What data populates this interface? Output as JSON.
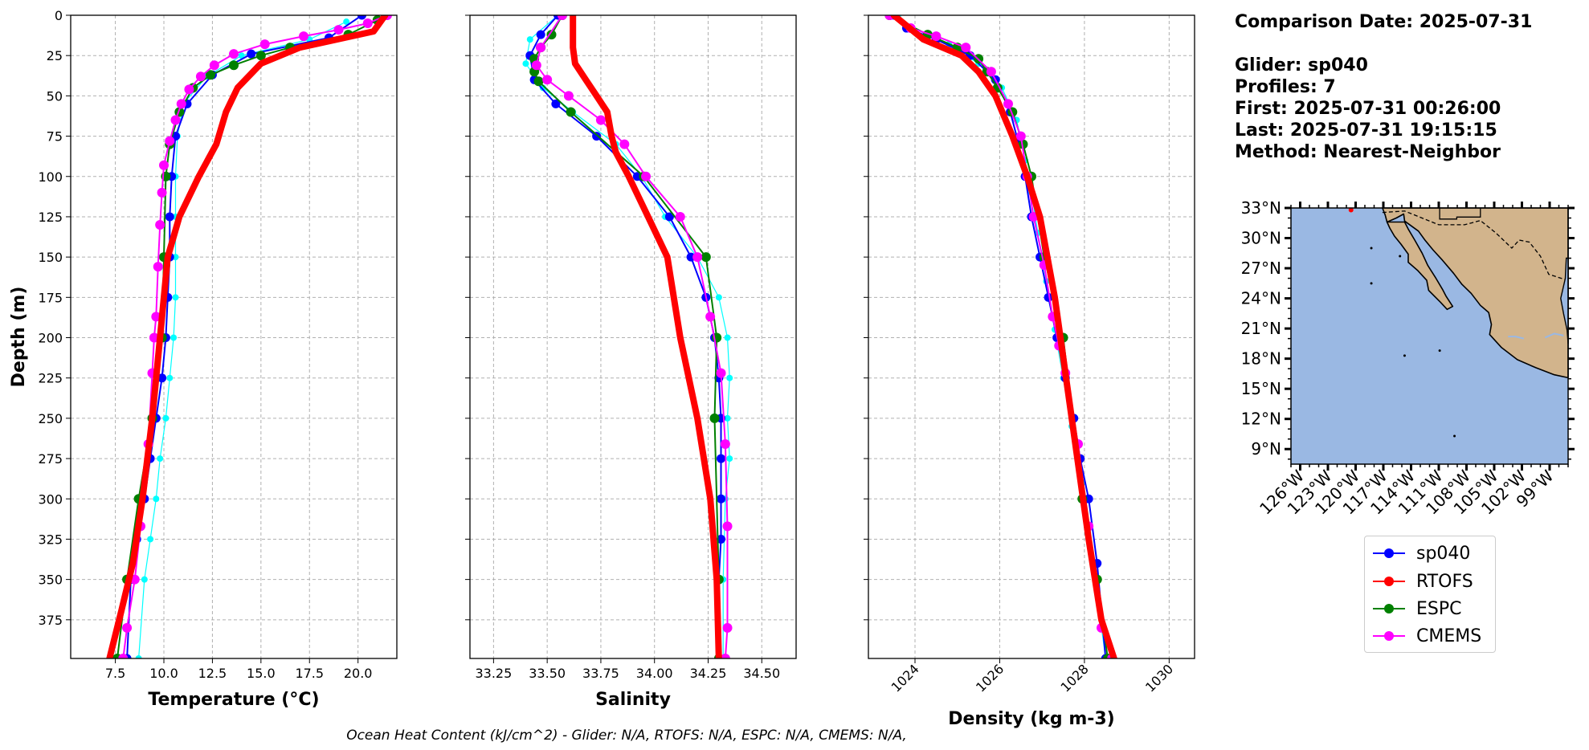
{
  "info": {
    "comparison": "Comparison Date: 2025-07-31",
    "glider": "Glider: sp040",
    "profiles": "Profiles: 7",
    "first": "First: 2025-07-31 00:26:00",
    "last": "Last: 2025-07-31 19:15:15",
    "method": "Method: Nearest-Neighbor"
  },
  "footnote": "Ocean Heat Content (kJ/cm^2) - Glider: N/A,  RTOFS: N/A,  ESPC: N/A,  CMEMS: N/A,",
  "legend": [
    {
      "name": "sp040",
      "color": "#0000ff"
    },
    {
      "name": "RTOFS",
      "color": "#ff0000"
    },
    {
      "name": "ESPC",
      "color": "#008000"
    },
    {
      "name": "CMEMS",
      "color": "#ff00ff"
    }
  ],
  "chart_data": [
    {
      "type": "line",
      "xlabel": "Temperature (°C)",
      "ylabel": "Depth (m)",
      "xlim": [
        5.2,
        22
      ],
      "ylim": [
        399,
        0
      ],
      "xticks": [
        "7.5",
        "10.0",
        "12.5",
        "15.0",
        "17.5",
        "20.0"
      ],
      "xtick_values": [
        7.5,
        10.0,
        12.5,
        15.0,
        17.5,
        20.0
      ],
      "yticks": [
        "0",
        "25",
        "50",
        "75",
        "100",
        "125",
        "150",
        "175",
        "200",
        "225",
        "250",
        "275",
        "300",
        "325",
        "350",
        "375"
      ],
      "ytick_values": [
        0,
        25,
        50,
        75,
        100,
        125,
        150,
        175,
        200,
        225,
        250,
        275,
        300,
        325,
        350,
        375
      ],
      "grid": true,
      "series": [
        {
          "name": "sp040",
          "color": "#0000ff",
          "x": [
            20.2,
            18.5,
            14.5,
            12.5,
            11.2,
            10.6,
            10.4,
            10.3,
            10.3,
            10.2,
            10.1,
            9.9,
            9.6,
            9.3,
            9.0,
            8.6,
            8.3,
            8.1
          ],
          "y": [
            0,
            14,
            24,
            37,
            55,
            75,
            100,
            125,
            150,
            175,
            200,
            225,
            250,
            275,
            300,
            325,
            350,
            399
          ]
        },
        {
          "name": "RTOFS",
          "color": "#ff0000",
          "x": [
            21.4,
            20.8,
            17.0,
            15.0,
            13.8,
            13.2,
            12.7,
            11.8,
            10.8,
            10.2,
            9.8,
            9.4,
            8.9,
            8.4,
            7.8,
            7.2
          ],
          "y": [
            0,
            10,
            20,
            30,
            45,
            60,
            80,
            100,
            125,
            150,
            200,
            250,
            300,
            340,
            370,
            399
          ]
        },
        {
          "name": "ESPC",
          "color": "#008000",
          "x": [
            21.0,
            19.5,
            16.5,
            15.0,
            13.6,
            12.4,
            11.5,
            10.8,
            10.3,
            10.1,
            10.0,
            9.9,
            9.4,
            8.7,
            8.1,
            7.6
          ],
          "y": [
            3,
            12,
            20,
            25,
            31,
            37,
            45,
            60,
            80,
            100,
            150,
            200,
            250,
            300,
            350,
            399
          ]
        },
        {
          "name": "CMEMS",
          "color": "#ff00ff",
          "x": [
            21.5,
            20.5,
            19.0,
            17.2,
            15.2,
            13.6,
            12.6,
            11.9,
            11.3,
            10.9,
            10.6,
            10.3,
            10.0,
            9.9,
            9.8,
            9.7,
            9.6,
            9.5,
            9.4,
            9.2,
            8.8,
            8.5,
            8.1,
            7.9
          ],
          "y": [
            0,
            5,
            9,
            13,
            18,
            24,
            31,
            38,
            46,
            55,
            65,
            78,
            93,
            110,
            130,
            156,
            187,
            200,
            222,
            266,
            317,
            350,
            380,
            399
          ]
        },
        {
          "name": "sp040 profiles",
          "color": "#00ffff",
          "x": [
            19.4,
            17.5,
            14.0,
            12.2,
            11.0,
            10.7,
            10.6,
            10.6,
            10.6,
            10.6,
            10.5,
            10.3,
            10.1,
            9.8,
            9.6,
            9.3,
            9.0,
            8.7
          ],
          "y": [
            4,
            15,
            25,
            38,
            55,
            75,
            100,
            125,
            150,
            175,
            200,
            225,
            250,
            275,
            300,
            325,
            350,
            399
          ]
        }
      ]
    },
    {
      "type": "line",
      "xlabel": "Salinity",
      "xlim": [
        33.14,
        34.66
      ],
      "ylim": [
        399,
        0
      ],
      "xticks": [
        "33.25",
        "33.50",
        "33.75",
        "34.00",
        "34.25",
        "34.50"
      ],
      "xtick_values": [
        33.25,
        33.5,
        33.75,
        34.0,
        34.25,
        34.5
      ],
      "grid": true,
      "series": [
        {
          "name": "sp040",
          "color": "#0000ff",
          "x": [
            33.55,
            33.47,
            33.42,
            33.44,
            33.54,
            33.73,
            33.92,
            34.07,
            34.17,
            34.24,
            34.28,
            34.3,
            34.31,
            34.31,
            34.31,
            34.31,
            34.3,
            34.3
          ],
          "y": [
            0,
            12,
            25,
            40,
            55,
            75,
            100,
            125,
            150,
            175,
            200,
            225,
            250,
            275,
            300,
            325,
            350,
            399
          ]
        },
        {
          "name": "RTOFS",
          "color": "#ff0000",
          "x": [
            33.62,
            33.62,
            33.63,
            33.68,
            33.73,
            33.78,
            33.8,
            33.82,
            33.88,
            33.97,
            34.06,
            34.12,
            34.2,
            34.26,
            34.29,
            34.3
          ],
          "y": [
            0,
            20,
            30,
            40,
            50,
            60,
            75,
            85,
            100,
            125,
            150,
            200,
            250,
            300,
            350,
            399
          ]
        },
        {
          "name": "ESPC",
          "color": "#008000",
          "x": [
            33.57,
            33.52,
            33.47,
            33.44,
            33.44,
            33.46,
            33.61,
            33.95,
            34.24,
            34.29,
            34.28,
            34.3,
            34.3
          ],
          "y": [
            0,
            12,
            20,
            27,
            35,
            41,
            60,
            100,
            150,
            200,
            250,
            350,
            399
          ]
        },
        {
          "name": "CMEMS",
          "color": "#ff00ff",
          "x": [
            33.57,
            33.47,
            33.45,
            33.5,
            33.6,
            33.75,
            33.86,
            33.96,
            34.12,
            34.2,
            34.26,
            34.31,
            34.33,
            34.34,
            34.34,
            34.33
          ],
          "y": [
            0,
            20,
            31,
            40,
            50,
            65,
            80,
            100,
            125,
            150,
            187,
            222,
            266,
            317,
            380,
            399
          ]
        },
        {
          "name": "sp040 profiles",
          "color": "#00ffff",
          "x": [
            33.55,
            33.42,
            33.4,
            33.48,
            33.62,
            33.82,
            33.94,
            34.05,
            34.2,
            34.3,
            34.34,
            34.35,
            34.34,
            34.35,
            34.33,
            34.32,
            34.32
          ],
          "y": [
            0,
            15,
            30,
            45,
            60,
            80,
            100,
            125,
            150,
            175,
            200,
            225,
            250,
            275,
            300,
            350,
            399
          ]
        }
      ]
    },
    {
      "type": "line",
      "xlabel": "Density (kg m-3)",
      "xlim": [
        1022.9,
        1030.6
      ],
      "ylim": [
        399,
        0
      ],
      "xticks": [
        "1024",
        "1026",
        "1028",
        "1030"
      ],
      "xtick_values": [
        1024,
        1026,
        1028,
        1030
      ],
      "grid": true,
      "series": [
        {
          "name": "sp040",
          "color": "#0000ff",
          "x": [
            1023.5,
            1023.8,
            1024.5,
            1025.3,
            1025.9,
            1026.25,
            1026.45,
            1026.6,
            1026.75,
            1026.95,
            1027.15,
            1027.35,
            1027.55,
            1027.75,
            1027.9,
            1028.1,
            1028.3,
            1028.5
          ],
          "y": [
            0,
            8,
            15,
            25,
            40,
            60,
            80,
            100,
            125,
            150,
            175,
            200,
            225,
            250,
            275,
            300,
            340,
            399
          ]
        },
        {
          "name": "RTOFS",
          "color": "#ff0000",
          "x": [
            1023.5,
            1024.2,
            1025.1,
            1025.5,
            1025.9,
            1026.3,
            1026.65,
            1026.95,
            1027.3,
            1027.7,
            1028.1,
            1028.4,
            1028.7
          ],
          "y": [
            0,
            15,
            25,
            35,
            50,
            75,
            100,
            125,
            175,
            250,
            325,
            375,
            399
          ]
        },
        {
          "name": "ESPC",
          "color": "#008000",
          "x": [
            1023.4,
            1024.3,
            1025.0,
            1025.5,
            1025.7,
            1025.95,
            1026.3,
            1026.55,
            1026.75,
            1027.05,
            1027.5,
            1027.95,
            1028.3,
            1028.55
          ],
          "y": [
            0,
            12,
            20,
            27,
            35,
            45,
            60,
            80,
            100,
            150,
            200,
            300,
            350,
            399
          ]
        },
        {
          "name": "CMEMS",
          "color": "#ff00ff",
          "x": [
            1023.4,
            1023.9,
            1024.5,
            1025.2,
            1025.8,
            1026.2,
            1026.5,
            1026.65,
            1026.8,
            1027.05,
            1027.25,
            1027.4,
            1027.55,
            1027.85,
            1028.1,
            1028.4,
            1028.65
          ],
          "y": [
            0,
            8,
            13,
            20,
            35,
            55,
            75,
            100,
            125,
            155,
            187,
            205,
            222,
            266,
            317,
            380,
            399
          ]
        },
        {
          "name": "sp040 profiles",
          "color": "#00ffff",
          "x": [
            1023.6,
            1024.0,
            1024.8,
            1025.5,
            1026.05,
            1026.4,
            1026.6,
            1026.75,
            1026.9,
            1027.1,
            1027.3,
            1027.5,
            1027.7,
            1027.95,
            1028.2,
            1028.5
          ],
          "y": [
            0,
            10,
            18,
            30,
            45,
            65,
            90,
            110,
            135,
            165,
            195,
            225,
            255,
            290,
            340,
            399
          ]
        }
      ]
    },
    {
      "type": "map",
      "lon_range": [
        -127,
        -97
      ],
      "lat_range": [
        7.5,
        33
      ],
      "lat_ticks": [
        "33°N",
        "30°N",
        "27°N",
        "24°N",
        "21°N",
        "18°N",
        "15°N",
        "12°N",
        "9°N"
      ],
      "lat_tick_values": [
        33,
        30,
        27,
        24,
        21,
        18,
        15,
        12,
        9
      ],
      "lon_ticks": [
        "126°W",
        "123°W",
        "120°W",
        "117°W",
        "114°W",
        "111°W",
        "108°W",
        "105°W",
        "102°W",
        "99°W"
      ],
      "lon_tick_values": [
        -126,
        -123,
        -120,
        -117,
        -114,
        -111,
        -108,
        -105,
        -102,
        -99
      ],
      "ocean_color": "#9ab8e3",
      "land_color": "#d2b48c",
      "marker": {
        "lon": -120.5,
        "lat": 32.8,
        "color": "#ff0000"
      }
    }
  ]
}
